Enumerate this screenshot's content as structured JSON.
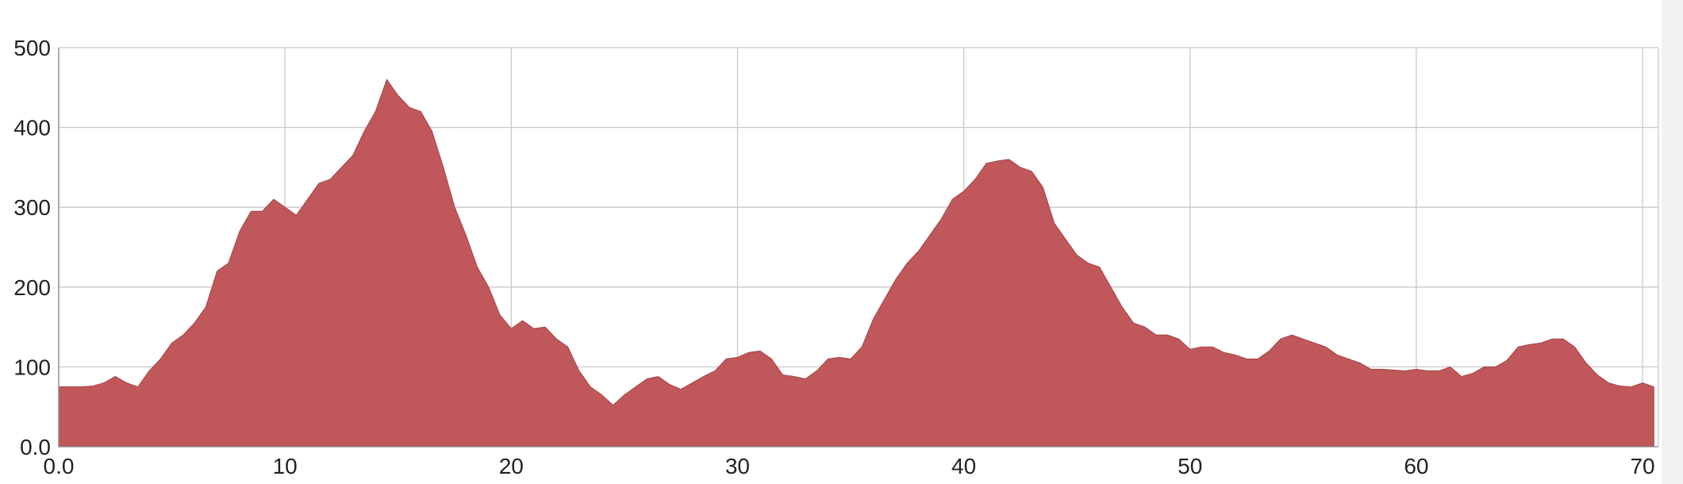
{
  "chart_data": {
    "type": "area",
    "x": [
      0,
      0.5,
      1,
      1.5,
      2,
      2.5,
      3,
      3.5,
      4,
      4.5,
      5,
      5.5,
      6,
      6.5,
      7,
      7.5,
      8,
      8.5,
      9,
      9.5,
      10,
      10.5,
      11,
      11.5,
      12,
      12.5,
      13,
      13.5,
      14,
      14.5,
      15,
      15.5,
      16,
      16.5,
      17,
      17.5,
      18,
      18.5,
      19,
      19.5,
      20,
      20.5,
      21,
      21.5,
      22,
      22.5,
      23,
      23.5,
      24,
      24.5,
      25,
      25.5,
      26,
      26.5,
      27,
      27.5,
      28,
      28.5,
      29,
      29.5,
      30,
      30.5,
      31,
      31.5,
      32,
      32.5,
      33,
      33.5,
      34,
      34.5,
      35,
      35.5,
      36,
      36.5,
      37,
      37.5,
      38,
      38.5,
      39,
      39.5,
      40,
      40.5,
      41,
      41.5,
      42,
      42.5,
      43,
      43.5,
      44,
      44.5,
      45,
      45.5,
      46,
      46.5,
      47,
      47.5,
      48,
      48.5,
      49,
      49.5,
      50,
      50.5,
      51,
      51.5,
      52,
      52.5,
      53,
      53.5,
      54,
      54.5,
      55,
      55.5,
      56,
      56.5,
      57,
      57.5,
      58,
      58.5,
      59,
      59.5,
      60,
      60.5,
      61,
      61.5,
      62,
      62.5,
      63,
      63.5,
      64,
      64.5,
      65,
      65.5,
      66,
      66.5,
      67,
      67.5,
      68,
      68.5,
      69,
      69.5,
      70,
      70.5
    ],
    "values": [
      75,
      75,
      75,
      76,
      80,
      88,
      80,
      75,
      95,
      110,
      130,
      140,
      155,
      175,
      220,
      230,
      270,
      295,
      295,
      310,
      300,
      290,
      310,
      330,
      335,
      350,
      365,
      395,
      420,
      460,
      440,
      425,
      420,
      395,
      350,
      300,
      265,
      225,
      200,
      165,
      148,
      158,
      148,
      150,
      135,
      125,
      95,
      75,
      65,
      52,
      65,
      75,
      85,
      88,
      78,
      72,
      80,
      88,
      95,
      110,
      112,
      118,
      120,
      110,
      90,
      88,
      85,
      95,
      110,
      112,
      110,
      125,
      160,
      185,
      210,
      230,
      245,
      265,
      285,
      310,
      320,
      335,
      355,
      358,
      360,
      350,
      345,
      325,
      280,
      260,
      240,
      230,
      225,
      200,
      175,
      155,
      150,
      140,
      140,
      135,
      122,
      125,
      125,
      118,
      115,
      110,
      110,
      120,
      135,
      140,
      135,
      130,
      125,
      115,
      110,
      105,
      97,
      97,
      96,
      95,
      97,
      95,
      95,
      100,
      88,
      92,
      100,
      100,
      108,
      125,
      128,
      130,
      135,
      135,
      125,
      105,
      90,
      80,
      76,
      75,
      80,
      75
    ],
    "color": "#c0575a",
    "xlim": [
      0,
      70.7
    ],
    "xticks": [
      {
        "value": 0,
        "label": "0.0"
      },
      10,
      20,
      30,
      40,
      50,
      60,
      70
    ],
    "ylim": [
      0,
      500
    ],
    "yticks": [
      {
        "value": 0,
        "label": "0.0"
      },
      100,
      200,
      300,
      400,
      500
    ],
    "grid": true
  }
}
